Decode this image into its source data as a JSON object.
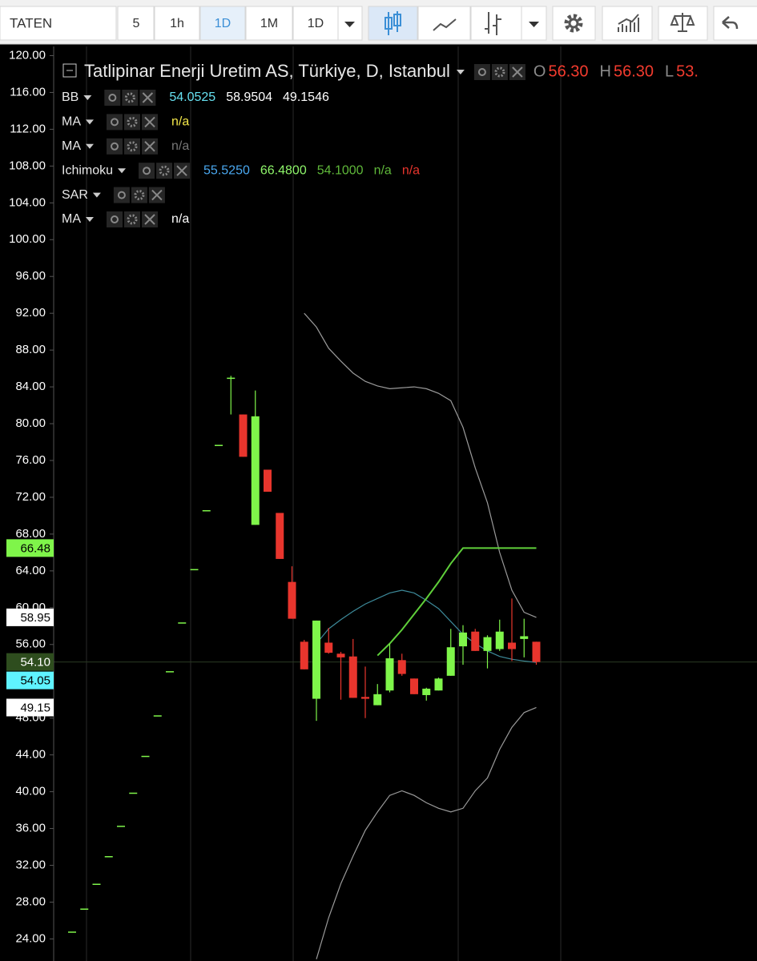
{
  "toolbar": {
    "symbol": "TATEN",
    "buttons": [
      "5",
      "1h",
      "1D",
      "1M",
      "1D"
    ]
  },
  "legend": {
    "title": "Tatlipinar Enerji Uretim AS, Türkiye, D, Istanbul",
    "ohlc": [
      {
        "key": "O",
        "value": "56.30"
      },
      {
        "key": "H",
        "value": "56.30"
      },
      {
        "key": "L",
        "value": "53."
      }
    ],
    "indicators": [
      {
        "name": "BB",
        "values": [
          {
            "text": "54.0525",
            "color": "#66e0f0"
          },
          {
            "text": "58.9504",
            "color": "#ffffff"
          },
          {
            "text": "49.1546",
            "color": "#ffffff"
          }
        ]
      },
      {
        "name": "MA",
        "values": [
          {
            "text": "n/a",
            "color": "#f5e94a"
          }
        ]
      },
      {
        "name": "MA",
        "values": [
          {
            "text": "n/a",
            "color": "#777777"
          }
        ]
      },
      {
        "name": "Ichimoku",
        "values": [
          {
            "text": "55.5250",
            "color": "#4aa8f0"
          },
          {
            "text": "66.4800",
            "color": "#8ef56a"
          },
          {
            "text": "54.1000",
            "color": "#5fb83a"
          },
          {
            "text": "n/a",
            "color": "#5fb83a"
          },
          {
            "text": "n/a",
            "color": "#e8352d"
          }
        ]
      },
      {
        "name": "SAR",
        "values": []
      },
      {
        "name": "MA",
        "values": [
          {
            "text": "n/a",
            "color": "#ffffff"
          }
        ]
      }
    ]
  },
  "chart_data": {
    "type": "candlestick",
    "ylim": [
      21.6,
      121.0
    ],
    "yticks": [
      {
        "value": 24,
        "label": "24.00"
      },
      {
        "value": 28,
        "label": "28.00"
      },
      {
        "value": 32,
        "label": "32.00"
      },
      {
        "value": 36,
        "label": "36.00"
      },
      {
        "value": 40,
        "label": "40.00"
      },
      {
        "value": 44,
        "label": "44.00"
      },
      {
        "value": 48,
        "label": "48.00"
      },
      {
        "value": 52,
        "label": "52.00"
      },
      {
        "value": 56,
        "label": "56.00"
      },
      {
        "value": 60,
        "label": "60.00"
      },
      {
        "value": 64,
        "label": "64.00"
      },
      {
        "value": 68,
        "label": "68.00"
      },
      {
        "value": 72,
        "label": "72.00"
      },
      {
        "value": 76,
        "label": "76.00"
      },
      {
        "value": 80,
        "label": "80.00"
      },
      {
        "value": 84,
        "label": "84.00"
      },
      {
        "value": 88,
        "label": "88.00"
      },
      {
        "value": 92,
        "label": "92.00"
      },
      {
        "value": 96,
        "label": "96.00"
      },
      {
        "value": 100,
        "label": "100.00"
      },
      {
        "value": 104,
        "label": "104.00"
      },
      {
        "value": 108,
        "label": "108.00"
      },
      {
        "value": 112,
        "label": "112.00"
      },
      {
        "value": 116,
        "label": "116.00"
      },
      {
        "value": 120,
        "label": "120.00"
      }
    ],
    "up_color": "#7ff54a",
    "down_color": "#e8352d",
    "open": [
      24.8,
      27.3,
      30.0,
      33.0,
      36.3,
      39.9,
      43.9,
      48.3,
      53.1,
      58.4,
      64.2,
      70.6,
      77.7,
      84.9,
      81.0,
      69.0,
      75.0,
      70.3,
      62.8,
      56.3,
      50.1,
      56.2,
      55.0,
      54.7,
      50.3,
      49.4,
      51.0,
      54.3,
      52.3,
      50.5,
      51.0,
      52.6,
      55.8,
      57.4,
      55.3,
      55.5,
      56.2,
      56.6,
      56.3
    ],
    "high": [
      24.8,
      27.3,
      30.0,
      33.0,
      36.3,
      39.9,
      43.9,
      48.3,
      53.1,
      58.4,
      64.2,
      70.6,
      77.7,
      85.2,
      81.0,
      83.6,
      75.0,
      70.3,
      64.5,
      56.5,
      58.6,
      57.8,
      55.2,
      56.6,
      53.6,
      51.7,
      56.1,
      55.0,
      52.3,
      51.3,
      52.4,
      57.7,
      58.1,
      57.7,
      57.0,
      58.7,
      61.0,
      58.8,
      56.3
    ],
    "low": [
      24.8,
      27.3,
      30.0,
      33.0,
      36.3,
      39.9,
      43.9,
      48.3,
      53.1,
      58.4,
      64.2,
      70.6,
      77.7,
      81.0,
      76.4,
      69.0,
      72.6,
      65.3,
      58.8,
      53.3,
      47.7,
      55.0,
      50.0,
      50.2,
      48.0,
      49.4,
      50.8,
      52.6,
      50.6,
      49.9,
      51.0,
      52.6,
      53.8,
      55.3,
      53.4,
      55.3,
      54.2,
      54.6,
      53.8
    ],
    "close": [
      24.8,
      27.3,
      30.0,
      33.0,
      36.3,
      39.9,
      43.9,
      48.3,
      53.1,
      58.4,
      64.2,
      70.6,
      77.7,
      85.0,
      76.4,
      80.8,
      72.6,
      65.3,
      58.8,
      53.3,
      58.6,
      55.1,
      54.6,
      50.2,
      50.1,
      50.6,
      54.5,
      52.8,
      50.6,
      51.2,
      52.3,
      55.7,
      57.3,
      55.3,
      56.8,
      57.4,
      55.5,
      56.9,
      54.1
    ],
    "lines": [
      {
        "color": "#9a9a9a",
        "values": [
          null,
          null,
          null,
          null,
          null,
          null,
          null,
          null,
          null,
          null,
          null,
          null,
          null,
          null,
          null,
          null,
          null,
          null,
          null,
          92.0,
          90.5,
          88.2,
          86.8,
          85.5,
          84.6,
          84.1,
          83.8,
          83.9,
          84.0,
          83.8,
          83.3,
          82.5,
          79.6,
          75.2,
          71.4,
          66.0,
          61.9,
          59.5,
          58.95
        ]
      },
      {
        "color": "#3d8a9a",
        "values": [
          null,
          null,
          null,
          null,
          null,
          null,
          null,
          null,
          null,
          null,
          null,
          null,
          null,
          null,
          null,
          null,
          null,
          null,
          null,
          null,
          56.1,
          57.7,
          58.7,
          59.6,
          60.4,
          61.0,
          61.6,
          61.9,
          61.6,
          60.8,
          59.9,
          58.5,
          57.1,
          56.1,
          55.3,
          54.7,
          54.4,
          54.2,
          54.05
        ]
      },
      {
        "color": "#9a9a9a",
        "values": [
          null,
          null,
          null,
          null,
          null,
          null,
          null,
          null,
          null,
          null,
          null,
          null,
          null,
          null,
          null,
          null,
          null,
          null,
          null,
          null,
          21.8,
          26.3,
          30.0,
          33.0,
          35.8,
          37.8,
          39.6,
          40.1,
          39.6,
          38.8,
          38.2,
          37.8,
          38.2,
          40.1,
          41.5,
          44.6,
          47.0,
          48.6,
          49.15
        ]
      },
      {
        "color": "#5fcf3a",
        "values": [
          null,
          null,
          null,
          null,
          null,
          null,
          null,
          null,
          null,
          null,
          null,
          null,
          null,
          null,
          null,
          null,
          null,
          null,
          null,
          null,
          null,
          null,
          null,
          null,
          null,
          54.8,
          56.1,
          57.6,
          59.3,
          61.0,
          62.8,
          64.8,
          66.48,
          66.48,
          66.48,
          66.48,
          66.48,
          66.48,
          66.48
        ]
      }
    ],
    "price_labels": [
      {
        "value": 66.48,
        "label": "66.48",
        "color": "#7ff54a",
        "text_color": "#000000"
      },
      {
        "value": 58.95,
        "label": "58.95",
        "color": "#ffffff",
        "text_color": "#000000"
      },
      {
        "value": 54.1,
        "label": "54.10",
        "color": "#2e4d1e",
        "text_color": "#ffffff",
        "line": true
      },
      {
        "value": 54.05,
        "label": "54.05",
        "color": "#5ff3ff",
        "text_color": "#000000"
      },
      {
        "value": 49.15,
        "label": "49.15",
        "color": "#ffffff",
        "text_color": "#000000"
      }
    ]
  }
}
